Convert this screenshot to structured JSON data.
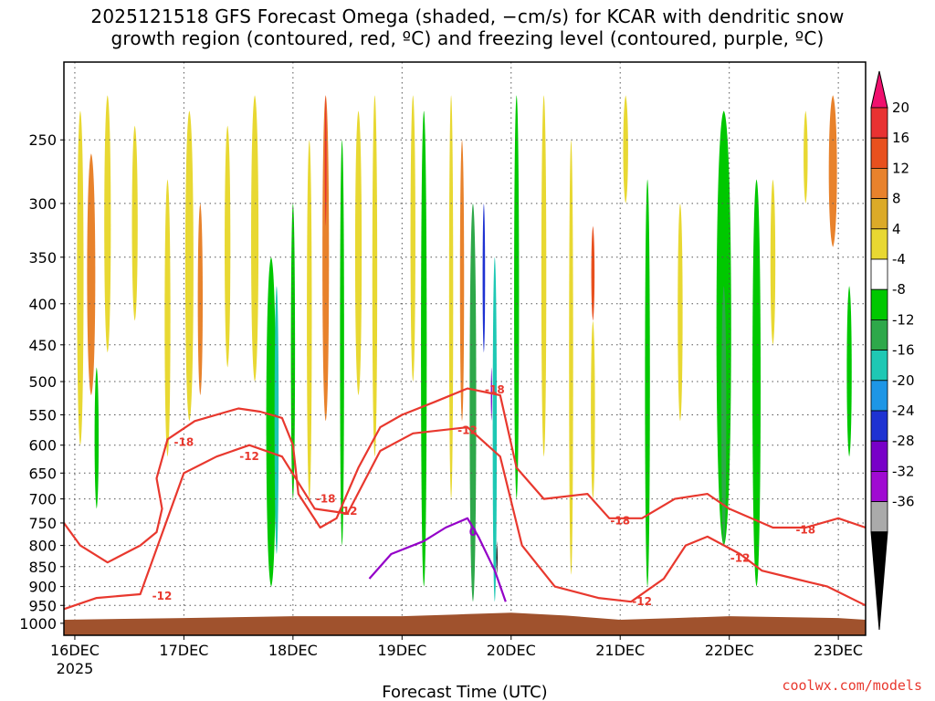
{
  "title": {
    "line1": "2025121518 GFS Forecast Omega (shaded, −cm/s) for KCAR with dendritic snow",
    "line2": "growth region (contoured, red, ºC) and freezing level (contoured, purple, ºC)"
  },
  "credit": "coolwx.com/models",
  "chart_data": {
    "type": "heatmap",
    "title": "2025121518 GFS Forecast Omega (shaded, −cm/s) for KCAR with dendritic snow growth region (contoured, red, ºC) and freezing level (contoured, purple, ºC)",
    "xlabel": "Forecast Time (UTC)",
    "ylabel": "",
    "x_unit": "days since 2025-12-16 00Z",
    "xlim": [
      -0.1,
      7.25
    ],
    "ylim": [
      1035,
      200
    ],
    "y_scale": "log-pressure",
    "x_ticks": [
      {
        "x": 0,
        "label": "16DEC",
        "sublabel": "2025"
      },
      {
        "x": 1,
        "label": "17DEC"
      },
      {
        "x": 2,
        "label": "18DEC"
      },
      {
        "x": 3,
        "label": "19DEC"
      },
      {
        "x": 4,
        "label": "20DEC"
      },
      {
        "x": 5,
        "label": "21DEC"
      },
      {
        "x": 6,
        "label": "22DEC"
      },
      {
        "x": 7,
        "label": "23DEC"
      }
    ],
    "y_ticks": [
      250,
      300,
      350,
      400,
      450,
      500,
      550,
      600,
      650,
      700,
      750,
      800,
      850,
      900,
      950,
      1000
    ],
    "grid": true,
    "colorbar": {
      "labels": [
        20,
        16,
        12,
        8,
        4,
        -4,
        -8,
        -12,
        -16,
        -20,
        -24,
        -28,
        -32,
        -36
      ],
      "colors": [
        "#f0106e",
        "#e83232",
        "#e8501e",
        "#e8822c",
        "#dcaa28",
        "#e8d832",
        "#ffffff",
        "#00c800",
        "#2ea84a",
        "#1ec8b4",
        "#1e96e6",
        "#1e32d2",
        "#7800c8",
        "#a00ad2",
        "#aaaaaa",
        "#000000"
      ]
    },
    "omega_features": [
      {
        "x": 0.05,
        "p_top": 230,
        "p_bot": 600,
        "w": 0.08,
        "value": 5
      },
      {
        "x": 0.15,
        "p_top": 260,
        "p_bot": 520,
        "w": 0.1,
        "value": 9
      },
      {
        "x": 0.3,
        "p_top": 220,
        "p_bot": 460,
        "w": 0.08,
        "value": 5
      },
      {
        "x": 0.2,
        "p_top": 480,
        "p_bot": 720,
        "w": 0.05,
        "value": -6
      },
      {
        "x": 0.55,
        "p_top": 240,
        "p_bot": 420,
        "w": 0.07,
        "value": 5
      },
      {
        "x": 0.85,
        "p_top": 280,
        "p_bot": 620,
        "w": 0.07,
        "value": 5
      },
      {
        "x": 1.05,
        "p_top": 230,
        "p_bot": 560,
        "w": 0.1,
        "value": 6
      },
      {
        "x": 1.15,
        "p_top": 300,
        "p_bot": 520,
        "w": 0.06,
        "value": 10
      },
      {
        "x": 1.4,
        "p_top": 240,
        "p_bot": 480,
        "w": 0.07,
        "value": 5
      },
      {
        "x": 1.65,
        "p_top": 220,
        "p_bot": 500,
        "w": 0.09,
        "value": 5
      },
      {
        "x": 1.8,
        "p_top": 350,
        "p_bot": 900,
        "w": 0.12,
        "value": -7
      },
      {
        "x": 1.85,
        "p_top": 380,
        "p_bot": 820,
        "w": 0.05,
        "value": -14
      },
      {
        "x": 2.0,
        "p_top": 300,
        "p_bot": 700,
        "w": 0.05,
        "value": -6
      },
      {
        "x": 2.15,
        "p_top": 250,
        "p_bot": 700,
        "w": 0.06,
        "value": 5
      },
      {
        "x": 2.3,
        "p_top": 220,
        "p_bot": 560,
        "w": 0.08,
        "value": 10
      },
      {
        "x": 2.3,
        "p_top": 220,
        "p_bot": 320,
        "w": 0.02,
        "value": 18
      },
      {
        "x": 2.45,
        "p_top": 250,
        "p_bot": 800,
        "w": 0.05,
        "value": -6
      },
      {
        "x": 2.6,
        "p_top": 230,
        "p_bot": 520,
        "w": 0.08,
        "value": 6
      },
      {
        "x": 2.75,
        "p_top": 220,
        "p_bot": 620,
        "w": 0.06,
        "value": 5
      },
      {
        "x": 3.1,
        "p_top": 220,
        "p_bot": 500,
        "w": 0.06,
        "value": 6
      },
      {
        "x": 3.2,
        "p_top": 230,
        "p_bot": 900,
        "w": 0.07,
        "value": -7
      },
      {
        "x": 3.45,
        "p_top": 220,
        "p_bot": 700,
        "w": 0.05,
        "value": 5
      },
      {
        "x": 3.55,
        "p_top": 250,
        "p_bot": 560,
        "w": 0.05,
        "value": 10
      },
      {
        "x": 3.65,
        "p_top": 300,
        "p_bot": 940,
        "w": 0.08,
        "value": -8
      },
      {
        "x": 3.75,
        "p_top": 300,
        "p_bot": 460,
        "w": 0.03,
        "value": -20
      },
      {
        "x": 3.85,
        "p_top": 350,
        "p_bot": 940,
        "w": 0.05,
        "value": -12
      },
      {
        "x": 3.82,
        "p_top": 480,
        "p_bot": 560,
        "w": 0.015,
        "value": -26
      },
      {
        "x": 3.87,
        "p_top": 790,
        "p_bot": 870,
        "w": 0.015,
        "value": -36
      },
      {
        "x": 4.05,
        "p_top": 220,
        "p_bot": 700,
        "w": 0.06,
        "value": -6
      },
      {
        "x": 4.3,
        "p_top": 220,
        "p_bot": 620,
        "w": 0.06,
        "value": 5
      },
      {
        "x": 4.55,
        "p_top": 250,
        "p_bot": 870,
        "w": 0.05,
        "value": 6
      },
      {
        "x": 4.75,
        "p_top": 320,
        "p_bot": 420,
        "w": 0.04,
        "value": 13
      },
      {
        "x": 4.75,
        "p_top": 420,
        "p_bot": 700,
        "w": 0.05,
        "value": 5
      },
      {
        "x": 5.05,
        "p_top": 220,
        "p_bot": 300,
        "w": 0.06,
        "value": 5
      },
      {
        "x": 5.25,
        "p_top": 280,
        "p_bot": 900,
        "w": 0.06,
        "value": -6
      },
      {
        "x": 5.55,
        "p_top": 300,
        "p_bot": 560,
        "w": 0.06,
        "value": 5
      },
      {
        "x": 5.95,
        "p_top": 230,
        "p_bot": 800,
        "w": 0.18,
        "value": -7
      },
      {
        "x": 5.95,
        "p_top": 380,
        "p_bot": 800,
        "w": 0.06,
        "value": -10
      },
      {
        "x": 6.25,
        "p_top": 280,
        "p_bot": 900,
        "w": 0.1,
        "value": -7
      },
      {
        "x": 6.4,
        "p_top": 280,
        "p_bot": 450,
        "w": 0.06,
        "value": 5
      },
      {
        "x": 6.7,
        "p_top": 230,
        "p_bot": 300,
        "w": 0.05,
        "value": 5
      },
      {
        "x": 6.95,
        "p_top": 220,
        "p_bot": 340,
        "w": 0.1,
        "value": 9
      },
      {
        "x": 7.1,
        "p_top": 380,
        "p_bot": 620,
        "w": 0.06,
        "value": -7
      }
    ],
    "contours": [
      {
        "name": "dgz-minus18",
        "color": "#e8382e",
        "label": "-18",
        "points": [
          [
            -0.1,
            750
          ],
          [
            0.05,
            800
          ],
          [
            0.3,
            840
          ],
          [
            0.6,
            800
          ],
          [
            0.75,
            770
          ],
          [
            0.8,
            720
          ],
          [
            0.75,
            660
          ],
          [
            0.85,
            590
          ],
          [
            1.1,
            560
          ],
          [
            1.5,
            540
          ],
          [
            1.7,
            545
          ],
          [
            1.9,
            555
          ],
          [
            2.0,
            600
          ],
          [
            2.05,
            690
          ],
          [
            2.25,
            760
          ],
          [
            2.4,
            740
          ],
          [
            2.6,
            640
          ],
          [
            2.8,
            570
          ],
          [
            3.0,
            550
          ],
          [
            3.3,
            530
          ],
          [
            3.6,
            510
          ],
          [
            3.9,
            520
          ],
          [
            4.05,
            640
          ],
          [
            4.3,
            700
          ],
          [
            4.7,
            690
          ],
          [
            4.9,
            740
          ],
          [
            5.2,
            740
          ],
          [
            5.5,
            700
          ],
          [
            5.8,
            690
          ],
          [
            6.0,
            720
          ],
          [
            6.4,
            760
          ],
          [
            6.7,
            760
          ],
          [
            7.0,
            740
          ],
          [
            7.25,
            760
          ]
        ]
      },
      {
        "name": "dgz-minus12",
        "color": "#e8382e",
        "label": "-12",
        "points": [
          [
            -0.1,
            960
          ],
          [
            0.2,
            930
          ],
          [
            0.6,
            920
          ],
          [
            1.0,
            650
          ],
          [
            1.3,
            620
          ],
          [
            1.6,
            600
          ],
          [
            1.9,
            620
          ],
          [
            2.2,
            720
          ],
          [
            2.5,
            730
          ],
          [
            2.8,
            610
          ],
          [
            3.1,
            580
          ],
          [
            3.6,
            570
          ],
          [
            3.9,
            620
          ],
          [
            4.1,
            800
          ],
          [
            4.4,
            900
          ],
          [
            4.8,
            930
          ],
          [
            5.1,
            940
          ],
          [
            5.4,
            880
          ],
          [
            5.6,
            800
          ],
          [
            5.8,
            780
          ],
          [
            6.1,
            820
          ],
          [
            6.3,
            860
          ],
          [
            6.6,
            880
          ],
          [
            6.9,
            900
          ],
          [
            7.25,
            950
          ]
        ]
      },
      {
        "name": "freezing-level",
        "color": "#9400c8",
        "label": "0",
        "points": [
          [
            2.7,
            880
          ],
          [
            2.9,
            820
          ],
          [
            3.2,
            790
          ],
          [
            3.4,
            760
          ],
          [
            3.6,
            740
          ],
          [
            3.7,
            780
          ],
          [
            3.85,
            860
          ],
          [
            3.95,
            940
          ]
        ]
      }
    ],
    "contour_labels": [
      {
        "x": 1.0,
        "p": 595,
        "text": "-18"
      },
      {
        "x": 2.3,
        "p": 700,
        "text": "-18"
      },
      {
        "x": 2.5,
        "p": 725,
        "text": "-12"
      },
      {
        "x": 3.85,
        "p": 512,
        "text": "-18"
      },
      {
        "x": 3.6,
        "p": 575,
        "text": "-12"
      },
      {
        "x": 5.0,
        "p": 745,
        "text": "-18"
      },
      {
        "x": 6.7,
        "p": 765,
        "text": "-18"
      },
      {
        "x": 6.1,
        "p": 830,
        "text": "-12"
      },
      {
        "x": 0.8,
        "p": 925,
        "text": "-12"
      },
      {
        "x": 1.6,
        "p": 620,
        "text": "-12"
      },
      {
        "x": 5.2,
        "p": 940,
        "text": "-12"
      },
      {
        "x": 3.65,
        "p": 770,
        "text": "0"
      }
    ],
    "terrain_surface_hpa": [
      [
        -0.1,
        990
      ],
      [
        1.0,
        985
      ],
      [
        2.0,
        980
      ],
      [
        3.0,
        980
      ],
      [
        3.5,
        975
      ],
      [
        4.0,
        970
      ],
      [
        4.5,
        978
      ],
      [
        5.0,
        990
      ],
      [
        5.5,
        985
      ],
      [
        6.0,
        980
      ],
      [
        7.0,
        985
      ],
      [
        7.25,
        990
      ]
    ]
  }
}
